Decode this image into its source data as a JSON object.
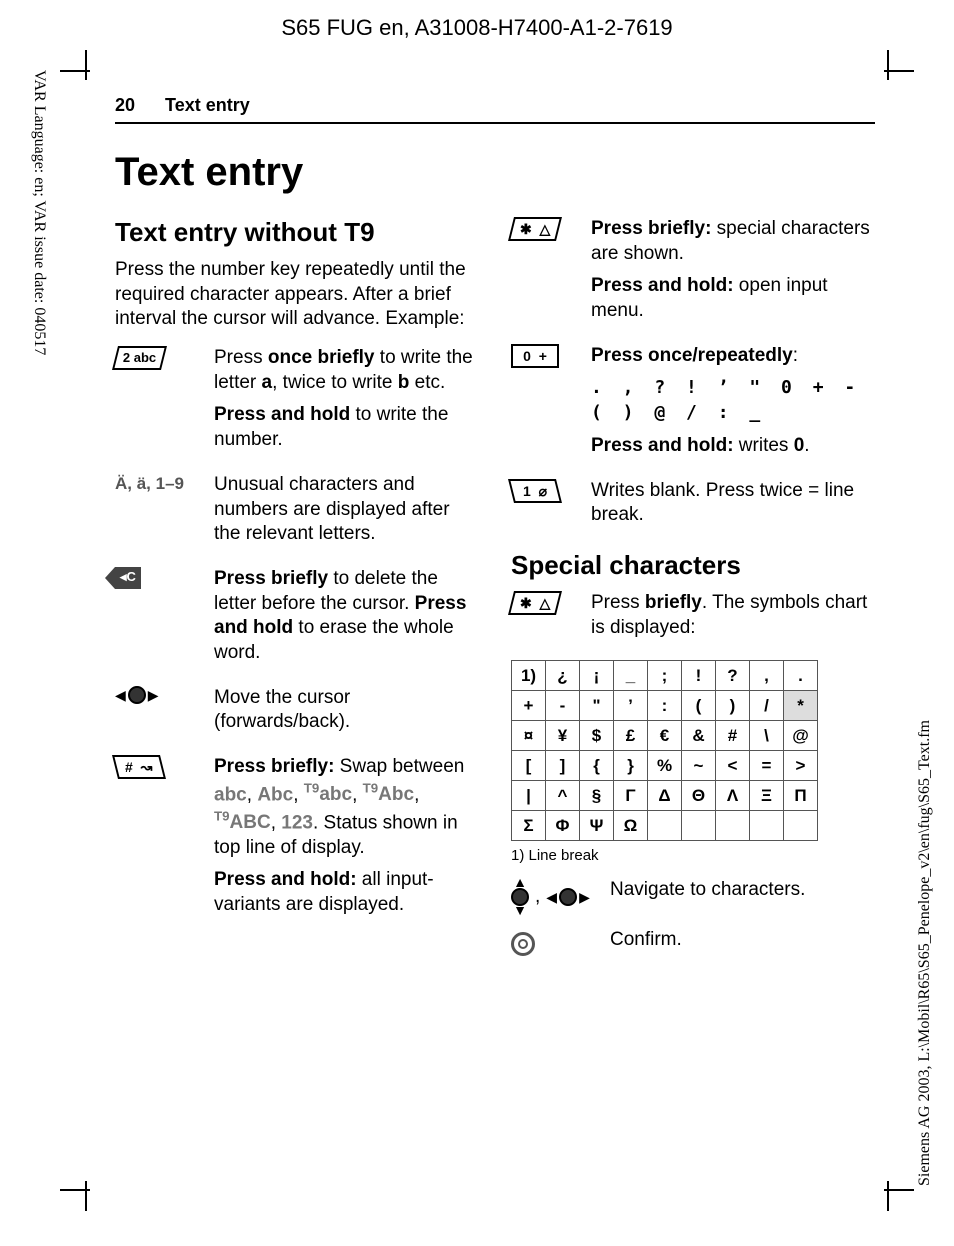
{
  "doc_header": "S65 FUG en, A31008-H7400-A1-2-7619",
  "side_left_text": "VAR Language: en; VAR issue date: 040517",
  "side_right_text": "Siemens AG 2003, L:\\Mobil\\R65\\S65_Penelope_v2\\en\\fug\\S65_Text.fm",
  "page_number": "20",
  "running_title": "Text entry",
  "h1": "Text entry",
  "section1_title": "Text entry without T9",
  "intro_text": "Press the number key repeatedly until the required character appears. After a brief interval the cursor will advance. Example:",
  "left_rows": [
    {
      "icon": "key-2abc",
      "paras": [
        "Press <b>once briefly</b> to write the letter <b>a</b>, twice to write <b>b</b> etc.",
        "<b>Press and hold</b> to write the number."
      ]
    },
    {
      "icon": "label-unusual",
      "label_text": "Ä, ä, 1–9",
      "paras": [
        "Unusual characters and numbers are displayed after the relevant letters."
      ]
    },
    {
      "icon": "clear-key",
      "paras": [
        "<b>Press briefly</b> to delete the letter before the cursor. <b>Press and hold</b> to erase the whole word."
      ]
    },
    {
      "icon": "nav-lr",
      "paras": [
        "Move the cursor (forwards/back)."
      ]
    },
    {
      "icon": "key-hash",
      "paras": [
        "<b>Press briefly:</b> Swap between <span class='modes'>abc</span>, <span class='modes'>Abc</span>, <span class='modes'><span class='sup'>T9</span>abc</span>, <span class='modes'><span class='sup'>T9</span>Abc</span>, <span class='modes'><span class='sup'>T9</span>ABC</span>, <span class='modes'>123</span>. Status shown in top line of display.",
        "<b>Press and hold:</b> all input-variants are displayed."
      ]
    }
  ],
  "right_rows": [
    {
      "icon": "key-star",
      "paras": [
        "<b>Press briefly:</b> special characters are shown.",
        "<b>Press and hold:</b> open input menu."
      ]
    },
    {
      "icon": "key-0",
      "paras": [
        "<b>Press once/repeatedly</b>:",
        "<span class='chars-line'>. , ? ! ’ \" 0 + - ( ) @ / : _</span>",
        "<b>Press and hold:</b> writes <b>0</b>."
      ]
    },
    {
      "icon": "key-1",
      "paras": [
        "Writes blank. Press twice = line break."
      ]
    }
  ],
  "section2_title": "Special characters",
  "special_intro": {
    "icon": "key-star",
    "text": "Press <b>briefly</b>. The symbols chart is displayed:"
  },
  "special_table": [
    [
      "1)",
      "¿",
      "¡",
      "_",
      ";",
      "!",
      "?",
      ",",
      "."
    ],
    [
      "+",
      "-",
      "\"",
      "’",
      ":",
      "(",
      ")",
      "/",
      "*"
    ],
    [
      "¤",
      "¥",
      "$",
      "£",
      "€",
      "&",
      "#",
      "\\",
      "@"
    ],
    [
      "[",
      "]",
      "{",
      "}",
      "%",
      "~",
      "<",
      "=",
      ">"
    ],
    [
      "|",
      "^",
      "§",
      "Γ",
      "Δ",
      "Θ",
      "Λ",
      "Ξ",
      "Π"
    ],
    [
      "Σ",
      "Φ",
      "Ψ",
      "Ω",
      "",
      "",
      "",
      "",
      ""
    ]
  ],
  "special_shaded": {
    "row": 1,
    "col": 8
  },
  "footnote_text": "1) Line break",
  "nav_rows": [
    {
      "icons": [
        "nav-ud",
        "comma",
        "nav-lr"
      ],
      "text": "Navigate to characters."
    },
    {
      "icons": [
        "confirm"
      ],
      "text": "Confirm."
    }
  ]
}
